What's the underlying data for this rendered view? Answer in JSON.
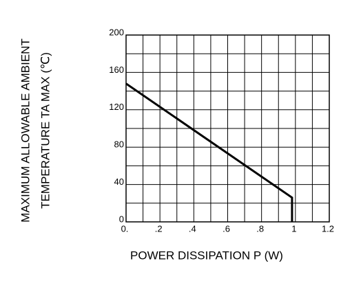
{
  "chart_data": {
    "type": "line",
    "x_label": "POWER DISSIPATION P (W)",
    "y_label": [
      "MAXIMUM ALLOWABLE AMBIENT",
      "TEMPERATURE TA MAX (℃)"
    ],
    "x": [
      0,
      0.98,
      0.98
    ],
    "series": [
      {
        "color": "#000000",
        "values": [
          148,
          26,
          0
        ]
      }
    ],
    "xlim": [
      0,
      1.2
    ],
    "xticks": [
      {
        "value": 0,
        "label": "0."
      },
      {
        "value": 0.2,
        "label": ".2"
      },
      {
        "value": 0.4,
        "label": ".4"
      },
      {
        "value": 0.6,
        "label": ".6"
      },
      {
        "value": 0.8,
        "label": ".8"
      },
      1,
      1.2
    ],
    "ylim": [
      0,
      200
    ],
    "yticks": [
      0,
      40,
      80,
      120,
      160,
      200
    ],
    "grid": true
  }
}
